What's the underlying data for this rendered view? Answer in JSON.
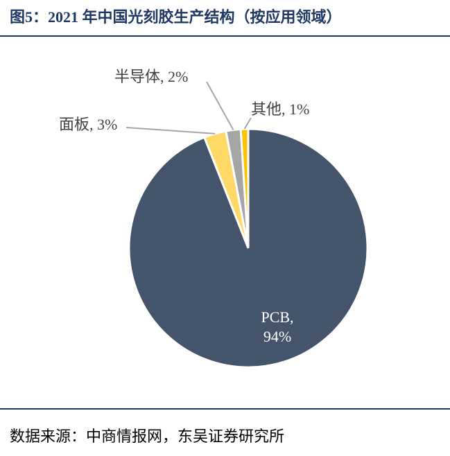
{
  "title": "图5：2021 年中国光刻胶生产结构（按应用领域）",
  "source": "数据来源：中商情报网，东吴证券研究所",
  "chart_data": {
    "type": "pie",
    "values": [
      94,
      3,
      2,
      1
    ],
    "value_labels": [
      "PCB, 94%",
      "面板, 3%",
      "半导体, 2%",
      "其他, 1%"
    ],
    "colors": [
      "#44546a",
      "#ffd966",
      "#a5a5a5",
      "#ffc000"
    ]
  }
}
